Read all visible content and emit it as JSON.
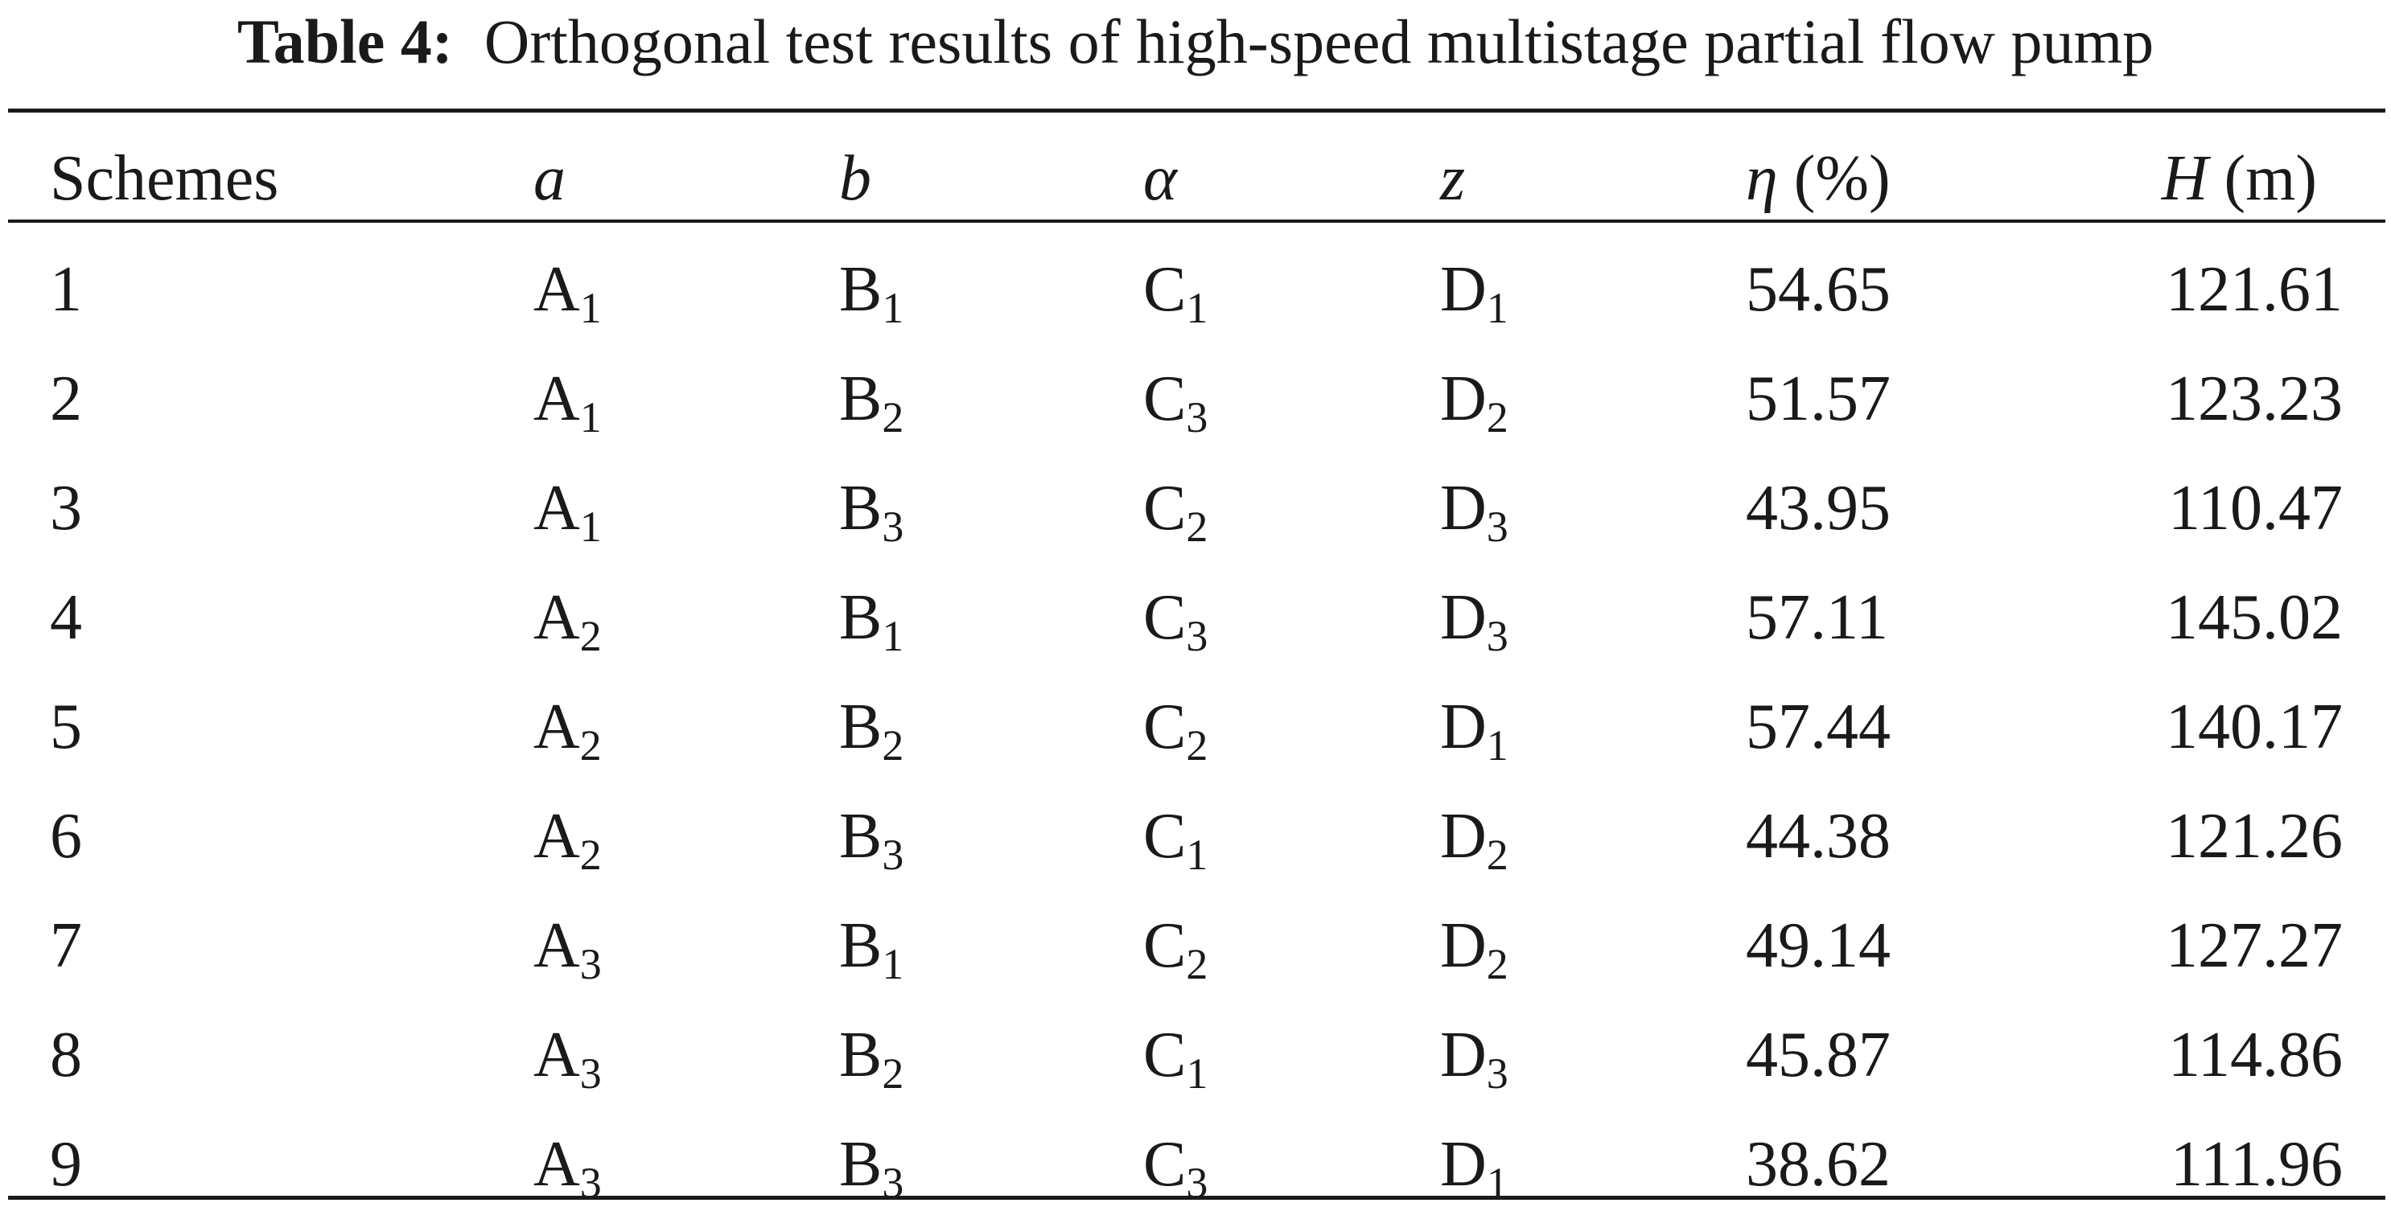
{
  "caption": {
    "label": "Table 4:",
    "text": "Orthogonal test results of high-speed multistage partial flow pump"
  },
  "header": {
    "schemes": "Schemes",
    "a": "a",
    "b": "b",
    "alpha": "α",
    "z": "z",
    "eta_symbol": "η",
    "eta_unit": " (%)",
    "h_symbol": "H",
    "h_unit": " (m)"
  },
  "rows": [
    {
      "scheme": "1",
      "a": {
        "letter": "A",
        "sub": "1"
      },
      "b": {
        "letter": "B",
        "sub": "1"
      },
      "alpha": {
        "letter": "C",
        "sub": "1"
      },
      "z": {
        "letter": "D",
        "sub": "1"
      },
      "eta": "54.65",
      "h": "121.61"
    },
    {
      "scheme": "2",
      "a": {
        "letter": "A",
        "sub": "1"
      },
      "b": {
        "letter": "B",
        "sub": "2"
      },
      "alpha": {
        "letter": "C",
        "sub": "3"
      },
      "z": {
        "letter": "D",
        "sub": "2"
      },
      "eta": "51.57",
      "h": "123.23"
    },
    {
      "scheme": "3",
      "a": {
        "letter": "A",
        "sub": "1"
      },
      "b": {
        "letter": "B",
        "sub": "3"
      },
      "alpha": {
        "letter": "C",
        "sub": "2"
      },
      "z": {
        "letter": "D",
        "sub": "3"
      },
      "eta": "43.95",
      "h": "110.47"
    },
    {
      "scheme": "4",
      "a": {
        "letter": "A",
        "sub": "2"
      },
      "b": {
        "letter": "B",
        "sub": "1"
      },
      "alpha": {
        "letter": "C",
        "sub": "3"
      },
      "z": {
        "letter": "D",
        "sub": "3"
      },
      "eta": "57.11",
      "h": "145.02"
    },
    {
      "scheme": "5",
      "a": {
        "letter": "A",
        "sub": "2"
      },
      "b": {
        "letter": "B",
        "sub": "2"
      },
      "alpha": {
        "letter": "C",
        "sub": "2"
      },
      "z": {
        "letter": "D",
        "sub": "1"
      },
      "eta": "57.44",
      "h": "140.17"
    },
    {
      "scheme": "6",
      "a": {
        "letter": "A",
        "sub": "2"
      },
      "b": {
        "letter": "B",
        "sub": "3"
      },
      "alpha": {
        "letter": "C",
        "sub": "1"
      },
      "z": {
        "letter": "D",
        "sub": "2"
      },
      "eta": "44.38",
      "h": "121.26"
    },
    {
      "scheme": "7",
      "a": {
        "letter": "A",
        "sub": "3"
      },
      "b": {
        "letter": "B",
        "sub": "1"
      },
      "alpha": {
        "letter": "C",
        "sub": "2"
      },
      "z": {
        "letter": "D",
        "sub": "2"
      },
      "eta": "49.14",
      "h": "127.27"
    },
    {
      "scheme": "8",
      "a": {
        "letter": "A",
        "sub": "3"
      },
      "b": {
        "letter": "B",
        "sub": "2"
      },
      "alpha": {
        "letter": "C",
        "sub": "1"
      },
      "z": {
        "letter": "D",
        "sub": "3"
      },
      "eta": "45.87",
      "h": "114.86"
    },
    {
      "scheme": "9",
      "a": {
        "letter": "A",
        "sub": "3"
      },
      "b": {
        "letter": "B",
        "sub": "3"
      },
      "alpha": {
        "letter": "C",
        "sub": "3"
      },
      "z": {
        "letter": "D",
        "sub": "1"
      },
      "eta": "38.62",
      "h": "111.96"
    }
  ]
}
